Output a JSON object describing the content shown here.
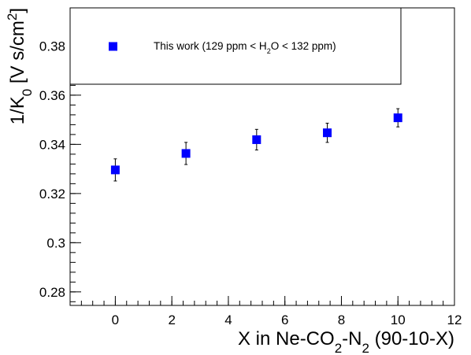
{
  "chart_data": {
    "type": "scatter",
    "title": "",
    "xlabel": {
      "parts": [
        {
          "text": "X in Ne-CO",
          "style": "normal"
        },
        {
          "text": "2",
          "style": "sub"
        },
        {
          "text": "-N",
          "style": "normal"
        },
        {
          "text": "2",
          "style": "sub"
        },
        {
          "text": " (90-10-X)",
          "style": "normal"
        }
      ]
    },
    "ylabel": {
      "parts": [
        {
          "text": "1/K",
          "style": "normal"
        },
        {
          "text": "0",
          "style": "sub"
        },
        {
          "text": " [V s/cm",
          "style": "normal"
        },
        {
          "text": "2",
          "style": "sup"
        },
        {
          "text": "]",
          "style": "normal"
        }
      ]
    },
    "xlim": [
      -1.6,
      12
    ],
    "ylim": [
      0.2745,
      0.3955
    ],
    "xticks": [
      0,
      2,
      4,
      6,
      8,
      10,
      12
    ],
    "xtick_labels": [
      "0",
      "2",
      "4",
      "6",
      "8",
      "10",
      "12"
    ],
    "yticks": [
      0.28,
      0.3,
      0.32,
      0.34,
      0.36,
      0.38
    ],
    "ytick_labels": [
      "0.28",
      "0.3",
      "0.32",
      "0.34",
      "0.36",
      "0.38"
    ],
    "x_minor_step": 0.4,
    "y_minor_step": 0.004,
    "grid": false,
    "legend": {
      "placement": "top-left",
      "entries": [
        {
          "marker": "square",
          "color": "#0000ff",
          "parts": [
            {
              "text": "This work (129 ppm < H",
              "style": "normal"
            },
            {
              "text": "2",
              "style": "sub"
            },
            {
              "text": "O < 132 ppm)",
              "style": "normal"
            }
          ]
        }
      ]
    },
    "series": [
      {
        "marker": "square",
        "color": "#0000ff",
        "x": [
          0,
          2.5,
          5,
          7.5,
          10
        ],
        "y": [
          0.3296,
          0.3363,
          0.3419,
          0.3447,
          0.3508
        ],
        "yerr": [
          0.0045,
          0.0045,
          0.0042,
          0.0039,
          0.0037
        ]
      }
    ]
  }
}
